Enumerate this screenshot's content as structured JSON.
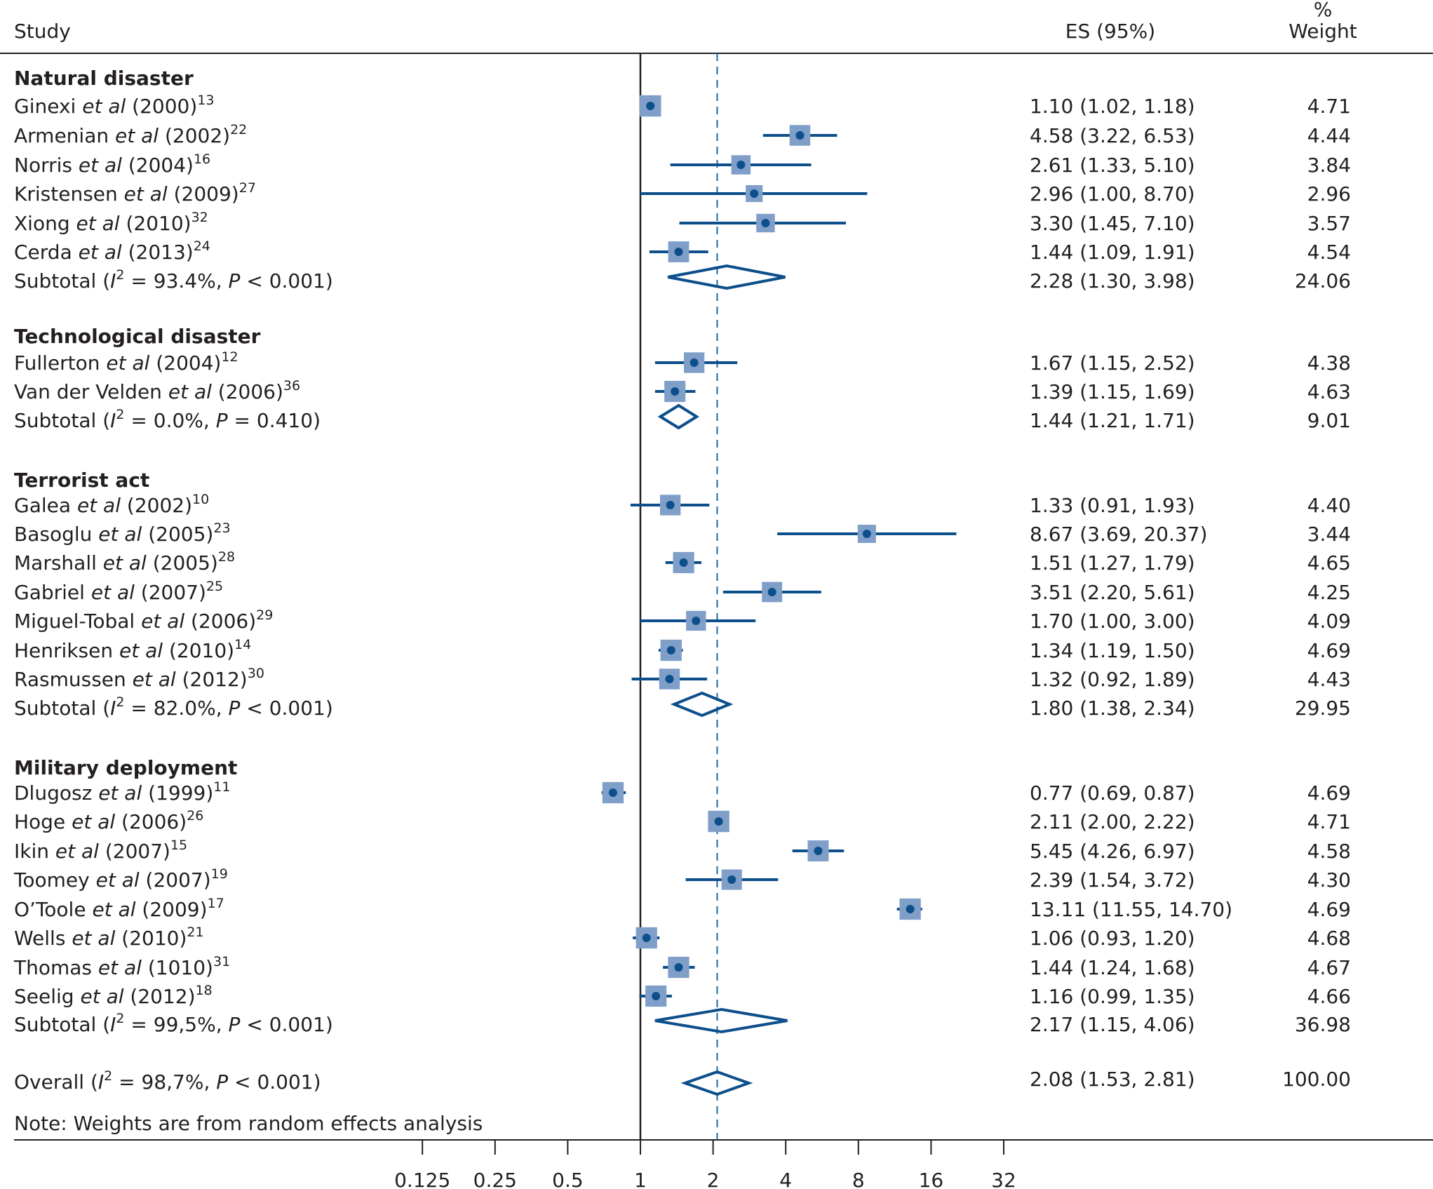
{
  "chart_data": {
    "type": "forest",
    "columns": {
      "study": "Study",
      "es": "ES (95%)",
      "weight_line1": "%",
      "weight_line2": "Weight"
    },
    "colors": {
      "marker_box": "#7f9fc9",
      "point": "#0d4f8b",
      "line": "#0d4f8b",
      "diamond": "#0d4f8b",
      "dashed": "#1b6aa5",
      "axis": "#231f20"
    },
    "x_axis": {
      "scale": "log2",
      "ticks": [
        0.125,
        0.25,
        0.5,
        1,
        2,
        4,
        8,
        16,
        32
      ],
      "tick_labels": [
        "0.125",
        "0.25",
        "0.5",
        "1",
        "2",
        "4",
        "8",
        "16",
        "32"
      ],
      "null_line": 1,
      "overall_line": 2.08
    },
    "groups": [
      {
        "name": "Natural disaster",
        "studies": [
          {
            "author": "Ginexi",
            "year": "(2000)",
            "ref": "13",
            "es": 1.1,
            "lo": 1.02,
            "hi": 1.18,
            "es_text": "1.10 (1.02, 1.18)",
            "weight": "4.71"
          },
          {
            "author": "Armenian",
            "year": "(2002)",
            "ref": "22",
            "es": 4.58,
            "lo": 3.22,
            "hi": 6.53,
            "es_text": "4.58 (3.22, 6.53)",
            "weight": "4.44"
          },
          {
            "author": "Norris",
            "year": "(2004)",
            "ref": "16",
            "es": 2.61,
            "lo": 1.33,
            "hi": 5.1,
            "es_text": "2.61 (1.33, 5.10)",
            "weight": "3.84"
          },
          {
            "author": "Kristensen",
            "year": "(2009)",
            "ref": "27",
            "es": 2.96,
            "lo": 1.0,
            "hi": 8.7,
            "es_text": "2.96 (1.00, 8.70)",
            "weight": "2.96"
          },
          {
            "author": "Xiong",
            "year": "(2010)",
            "ref": "32",
            "es": 3.3,
            "lo": 1.45,
            "hi": 7.1,
            "es_text": "3.30 (1.45, 7.10)",
            "weight": "3.57"
          },
          {
            "author": "Cerda",
            "year": "(2013)",
            "ref": "24",
            "es": 1.44,
            "lo": 1.09,
            "hi": 1.91,
            "es_text": "1.44 (1.09, 1.91)",
            "weight": "4.54"
          }
        ],
        "subtotal": {
          "i2": "93.4%",
          "p_sign": "<",
          "p": "0.001",
          "es": 2.28,
          "lo": 1.3,
          "hi": 3.98,
          "es_text": "2.28 (1.30, 3.98)",
          "weight": "24.06"
        }
      },
      {
        "name": "Technological disaster",
        "studies": [
          {
            "author": "Fullerton",
            "year": "(2004)",
            "ref": "12",
            "es": 1.67,
            "lo": 1.15,
            "hi": 2.52,
            "es_text": "1.67 (1.15, 2.52)",
            "weight": "4.38"
          },
          {
            "author": "Van der Velden",
            "year": "(2006)",
            "ref": "36",
            "es": 1.39,
            "lo": 1.15,
            "hi": 1.69,
            "es_text": "1.39 (1.15, 1.69)",
            "weight": "4.63"
          }
        ],
        "subtotal": {
          "i2": "0.0%",
          "p_sign": "=",
          "p": "0.410",
          "es": 1.44,
          "lo": 1.21,
          "hi": 1.71,
          "es_text": "1.44 (1.21, 1.71)",
          "weight": "9.01"
        }
      },
      {
        "name": "Terrorist act",
        "studies": [
          {
            "author": "Galea",
            "year": "(2002)",
            "ref": "10",
            "es": 1.33,
            "lo": 0.91,
            "hi": 1.93,
            "es_text": "1.33 (0.91, 1.93)",
            "weight": "4.40"
          },
          {
            "author": "Basoglu",
            "year": "(2005)",
            "ref": "23",
            "es": 8.67,
            "lo": 3.69,
            "hi": 20.37,
            "es_text": "8.67 (3.69, 20.37)",
            "weight": "3.44"
          },
          {
            "author": "Marshall",
            "year": "(2005)",
            "ref": "28",
            "es": 1.51,
            "lo": 1.27,
            "hi": 1.79,
            "es_text": "1.51 (1.27, 1.79)",
            "weight": "4.65"
          },
          {
            "author": "Gabriel",
            "year": "(2007)",
            "ref": "25",
            "es": 3.51,
            "lo": 2.2,
            "hi": 5.61,
            "es_text": "3.51 (2.20, 5.61)",
            "weight": "4.25"
          },
          {
            "author": "Miguel-Tobal",
            "year": "(2006)",
            "ref": "29",
            "es": 1.7,
            "lo": 1.0,
            "hi": 3.0,
            "es_text": "1.70 (1.00, 3.00)",
            "weight": "4.09"
          },
          {
            "author": "Henriksen",
            "year": "(2010)",
            "ref": "14",
            "es": 1.34,
            "lo": 1.19,
            "hi": 1.5,
            "es_text": "1.34 (1.19, 1.50)",
            "weight": "4.69"
          },
          {
            "author": "Rasmussen",
            "year": "(2012)",
            "ref": "30",
            "es": 1.32,
            "lo": 0.92,
            "hi": 1.89,
            "es_text": "1.32 (0.92, 1.89)",
            "weight": "4.43"
          }
        ],
        "subtotal": {
          "i2": "82.0%",
          "p_sign": "<",
          "p": "0.001",
          "es": 1.8,
          "lo": 1.38,
          "hi": 2.34,
          "es_text": "1.80 (1.38, 2.34)",
          "weight": "29.95"
        }
      },
      {
        "name": "Military deployment",
        "studies": [
          {
            "author": "Dlugosz",
            "year": "(1999)",
            "ref": "11",
            "es": 0.77,
            "lo": 0.69,
            "hi": 0.87,
            "es_text": "0.77 (0.69, 0.87)",
            "weight": "4.69"
          },
          {
            "author": "Hoge",
            "year": "(2006)",
            "ref": "26",
            "es": 2.11,
            "lo": 2.0,
            "hi": 2.22,
            "es_text": "2.11 (2.00, 2.22)",
            "weight": "4.71"
          },
          {
            "author": "Ikin",
            "year": "(2007)",
            "ref": "15",
            "es": 5.45,
            "lo": 4.26,
            "hi": 6.97,
            "es_text": "5.45 (4.26, 6.97)",
            "weight": "4.58"
          },
          {
            "author": "Toomey",
            "year": "(2007)",
            "ref": "19",
            "es": 2.39,
            "lo": 1.54,
            "hi": 3.72,
            "es_text": "2.39 (1.54, 3.72)",
            "weight": "4.30"
          },
          {
            "author": "O’Toole",
            "year": "(2009)",
            "ref": "17",
            "es": 13.11,
            "lo": 11.55,
            "hi": 14.7,
            "es_text": "13.11 (11.55, 14.70)",
            "weight": "4.69"
          },
          {
            "author": "Wells",
            "year": "(2010)",
            "ref": "21",
            "es": 1.06,
            "lo": 0.93,
            "hi": 1.2,
            "es_text": "1.06 (0.93, 1.20)",
            "weight": "4.68"
          },
          {
            "author": "Thomas",
            "year": "(1010)",
            "ref": "31",
            "es": 1.44,
            "lo": 1.24,
            "hi": 1.68,
            "es_text": "1.44 (1.24, 1.68)",
            "weight": "4.67"
          },
          {
            "author": "Seelig",
            "year": "(2012)",
            "ref": "18",
            "es": 1.16,
            "lo": 0.99,
            "hi": 1.35,
            "es_text": "1.16 (0.99, 1.35)",
            "weight": "4.66"
          }
        ],
        "subtotal": {
          "i2": "99,5%",
          "p_sign": "<",
          "p": "0.001",
          "es": 2.17,
          "lo": 1.15,
          "hi": 4.06,
          "es_text": "2.17 (1.15, 4.06)",
          "weight": "36.98"
        }
      }
    ],
    "overall": {
      "label": "Overall",
      "i2": "98,7%",
      "p_sign": "<",
      "p": "0.001",
      "es": 2.08,
      "lo": 1.53,
      "hi": 2.81,
      "es_text": "2.08 (1.53, 2.81)",
      "weight": "100.00"
    },
    "et_al": "et al",
    "subtotal_label": "Subtotal",
    "note": "Note: Weights are from random effects analysis"
  }
}
